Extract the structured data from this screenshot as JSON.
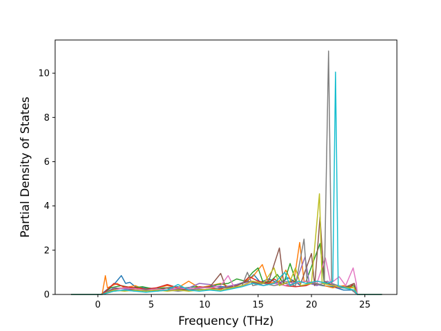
{
  "chart_data": {
    "type": "line",
    "title": "",
    "xlabel": "Frequency (THz)",
    "ylabel": "Partial Density of States",
    "xlim": [
      -4.0,
      28.0
    ],
    "ylim": [
      0,
      11.5
    ],
    "xticks": [
      0,
      5,
      10,
      15,
      20,
      25
    ],
    "yticks": [
      0,
      2,
      4,
      6,
      8,
      10
    ],
    "grid": false,
    "legend": "none",
    "colors": [
      "#1f77b4",
      "#ff7f0e",
      "#2ca02c",
      "#d62728",
      "#9467bd",
      "#8c564b",
      "#e377c2",
      "#7f7f7f",
      "#bcbd22",
      "#17becf"
    ],
    "x_range_data": [
      -2.5,
      26.6
    ],
    "series": [
      {
        "color": "#1f77b4",
        "points": [
          [
            -2.5,
            0
          ],
          [
            0.3,
            0
          ],
          [
            0.8,
            0.2
          ],
          [
            1.5,
            0.45
          ],
          [
            2.2,
            0.85
          ],
          [
            2.6,
            0.5
          ],
          [
            3.0,
            0.55
          ],
          [
            3.5,
            0.35
          ],
          [
            4.5,
            0.3
          ],
          [
            5.5,
            0.25
          ],
          [
            6.5,
            0.3
          ],
          [
            7.5,
            0.35
          ],
          [
            8.5,
            0.25
          ],
          [
            9.5,
            0.3
          ],
          [
            10.5,
            0.35
          ],
          [
            12,
            0.35
          ],
          [
            13,
            0.45
          ],
          [
            14,
            0.6
          ],
          [
            14.6,
            0.9
          ],
          [
            15.2,
            0.55
          ],
          [
            16,
            0.7
          ],
          [
            17,
            0.5
          ],
          [
            17.8,
            0.75
          ],
          [
            18.4,
            0.6
          ],
          [
            19,
            0.4
          ],
          [
            20,
            0.5
          ],
          [
            21,
            0.4
          ],
          [
            22,
            0.35
          ],
          [
            23,
            0.2
          ],
          [
            24,
            0.2
          ],
          [
            24.3,
            0
          ],
          [
            26.6,
            0
          ]
        ]
      },
      {
        "color": "#ff7f0e",
        "points": [
          [
            -2.5,
            0
          ],
          [
            0.4,
            0
          ],
          [
            0.7,
            0.85
          ],
          [
            0.9,
            0.3
          ],
          [
            1.8,
            0.5
          ],
          [
            2.5,
            0.3
          ],
          [
            3.5,
            0.4
          ],
          [
            4.5,
            0.2
          ],
          [
            5.5,
            0.3
          ],
          [
            6.5,
            0.4
          ],
          [
            7.5,
            0.3
          ],
          [
            8.5,
            0.6
          ],
          [
            9.5,
            0.3
          ],
          [
            10.5,
            0.4
          ],
          [
            11.5,
            0.5
          ],
          [
            12.5,
            0.3
          ],
          [
            13.5,
            0.5
          ],
          [
            14.5,
            0.8
          ],
          [
            15.4,
            1.35
          ],
          [
            16,
            0.5
          ],
          [
            17,
            0.6
          ],
          [
            17.6,
            1.1
          ],
          [
            18.3,
            0.4
          ],
          [
            18.9,
            2.35
          ],
          [
            19.3,
            0.6
          ],
          [
            20.3,
            0.5
          ],
          [
            21.2,
            0.4
          ],
          [
            22,
            0.3
          ],
          [
            23,
            0.4
          ],
          [
            24,
            0.3
          ],
          [
            24.3,
            0
          ],
          [
            26.6,
            0
          ]
        ]
      },
      {
        "color": "#2ca02c",
        "points": [
          [
            -2.5,
            0
          ],
          [
            0.4,
            0
          ],
          [
            1.2,
            0.3
          ],
          [
            2.2,
            0.4
          ],
          [
            3.2,
            0.3
          ],
          [
            4.2,
            0.35
          ],
          [
            5.2,
            0.25
          ],
          [
            6.2,
            0.3
          ],
          [
            7.2,
            0.25
          ],
          [
            8.2,
            0.3
          ],
          [
            9.2,
            0.35
          ],
          [
            10.2,
            0.3
          ],
          [
            11.2,
            0.45
          ],
          [
            12.2,
            0.5
          ],
          [
            13.0,
            0.7
          ],
          [
            13.8,
            0.6
          ],
          [
            14.5,
            1.0
          ],
          [
            15.0,
            1.2
          ],
          [
            15.5,
            0.5
          ],
          [
            16.2,
            0.6
          ],
          [
            16.8,
            0.9
          ],
          [
            17.4,
            0.5
          ],
          [
            18.0,
            1.4
          ],
          [
            18.6,
            0.5
          ],
          [
            19.5,
            0.6
          ],
          [
            20.8,
            2.3
          ],
          [
            21.2,
            0.5
          ],
          [
            22,
            0.4
          ],
          [
            23,
            0.3
          ],
          [
            24,
            0.4
          ],
          [
            24.3,
            0
          ],
          [
            26.6,
            0
          ]
        ]
      },
      {
        "color": "#d62728",
        "points": [
          [
            -2.5,
            0
          ],
          [
            0.4,
            0
          ],
          [
            1.5,
            0.5
          ],
          [
            2.5,
            0.35
          ],
          [
            3.5,
            0.3
          ],
          [
            4.5,
            0.25
          ],
          [
            5.5,
            0.3
          ],
          [
            6.5,
            0.45
          ],
          [
            7.5,
            0.3
          ],
          [
            8.5,
            0.2
          ],
          [
            9.5,
            0.35
          ],
          [
            10.5,
            0.3
          ],
          [
            11.5,
            0.25
          ],
          [
            12.5,
            0.4
          ],
          [
            13.5,
            0.5
          ],
          [
            14.2,
            0.8
          ],
          [
            15.0,
            0.6
          ],
          [
            16.0,
            0.5
          ],
          [
            16.5,
            0.7
          ],
          [
            17.5,
            0.4
          ],
          [
            18.5,
            0.35
          ],
          [
            19.5,
            0.4
          ],
          [
            20.5,
            0.6
          ],
          [
            21.5,
            0.5
          ],
          [
            22.5,
            0.3
          ],
          [
            23.5,
            0.3
          ],
          [
            24,
            0.5
          ],
          [
            24.3,
            0
          ],
          [
            26.6,
            0
          ]
        ]
      },
      {
        "color": "#9467bd",
        "points": [
          [
            -2.5,
            0
          ],
          [
            0.4,
            0
          ],
          [
            1.5,
            0.3
          ],
          [
            2.5,
            0.25
          ],
          [
            3.5,
            0.2
          ],
          [
            4.5,
            0.2
          ],
          [
            5.5,
            0.25
          ],
          [
            6.5,
            0.2
          ],
          [
            7.5,
            0.25
          ],
          [
            8.5,
            0.3
          ],
          [
            9.5,
            0.5
          ],
          [
            10.5,
            0.45
          ],
          [
            11.5,
            0.3
          ],
          [
            12.5,
            0.4
          ],
          [
            13.5,
            0.5
          ],
          [
            14.5,
            0.6
          ],
          [
            15.5,
            0.4
          ],
          [
            16.5,
            0.5
          ],
          [
            17.5,
            0.6
          ],
          [
            18.5,
            0.5
          ],
          [
            19.4,
            1.7
          ],
          [
            19.8,
            0.5
          ],
          [
            20.5,
            0.4
          ],
          [
            21.5,
            0.6
          ],
          [
            22.5,
            0.3
          ],
          [
            23.5,
            0.3
          ],
          [
            24.3,
            0
          ],
          [
            26.6,
            0
          ]
        ]
      },
      {
        "color": "#8c564b",
        "points": [
          [
            -2.5,
            0
          ],
          [
            0.4,
            0
          ],
          [
            1.5,
            0.25
          ],
          [
            2.5,
            0.3
          ],
          [
            3.5,
            0.2
          ],
          [
            4.5,
            0.25
          ],
          [
            5.5,
            0.2
          ],
          [
            6.5,
            0.3
          ],
          [
            7.5,
            0.25
          ],
          [
            8.5,
            0.2
          ],
          [
            9.5,
            0.3
          ],
          [
            10.5,
            0.35
          ],
          [
            11.5,
            0.95
          ],
          [
            12.0,
            0.3
          ],
          [
            13.0,
            0.4
          ],
          [
            14.0,
            0.6
          ],
          [
            15.0,
            0.5
          ],
          [
            16.0,
            0.6
          ],
          [
            17.0,
            2.1
          ],
          [
            17.4,
            0.5
          ],
          [
            18.2,
            0.6
          ],
          [
            19.0,
            0.5
          ],
          [
            20.0,
            1.85
          ],
          [
            20.3,
            0.4
          ],
          [
            20.8,
            3.5
          ],
          [
            21.2,
            0.6
          ],
          [
            22,
            0.4
          ],
          [
            23,
            0.3
          ],
          [
            24,
            0.5
          ],
          [
            24.3,
            0
          ],
          [
            26.6,
            0
          ]
        ]
      },
      {
        "color": "#e377c2",
        "points": [
          [
            -2.5,
            0
          ],
          [
            0.4,
            0
          ],
          [
            1.5,
            0.2
          ],
          [
            2.5,
            0.3
          ],
          [
            3.5,
            0.25
          ],
          [
            4.5,
            0.2
          ],
          [
            5.5,
            0.25
          ],
          [
            6.5,
            0.2
          ],
          [
            7.5,
            0.3
          ],
          [
            8.5,
            0.25
          ],
          [
            9.5,
            0.3
          ],
          [
            10.5,
            0.3
          ],
          [
            11.5,
            0.4
          ],
          [
            12.2,
            0.85
          ],
          [
            12.8,
            0.3
          ],
          [
            13.5,
            0.4
          ],
          [
            14.5,
            0.5
          ],
          [
            15.5,
            0.4
          ],
          [
            16.5,
            0.5
          ],
          [
            17.5,
            0.4
          ],
          [
            18.5,
            0.5
          ],
          [
            19.5,
            0.6
          ],
          [
            20.5,
            0.5
          ],
          [
            21.3,
            1.65
          ],
          [
            21.8,
            0.5
          ],
          [
            22.6,
            0.8
          ],
          [
            23.2,
            0.4
          ],
          [
            23.9,
            1.2
          ],
          [
            24.2,
            0.5
          ],
          [
            24.3,
            0
          ],
          [
            26.6,
            0
          ]
        ]
      },
      {
        "color": "#7f7f7f",
        "points": [
          [
            -2.5,
            0
          ],
          [
            0.4,
            0
          ],
          [
            1.5,
            0.15
          ],
          [
            2.5,
            0.2
          ],
          [
            3.5,
            0.15
          ],
          [
            4.5,
            0.2
          ],
          [
            5.5,
            0.15
          ],
          [
            6.5,
            0.2
          ],
          [
            7.5,
            0.15
          ],
          [
            8.5,
            0.2
          ],
          [
            9.5,
            0.25
          ],
          [
            10.5,
            0.2
          ],
          [
            11.5,
            0.3
          ],
          [
            12.5,
            0.3
          ],
          [
            13.5,
            0.4
          ],
          [
            14.0,
            1.0
          ],
          [
            14.5,
            0.4
          ],
          [
            15.5,
            0.5
          ],
          [
            16.5,
            0.4
          ],
          [
            17.5,
            0.5
          ],
          [
            18.5,
            0.4
          ],
          [
            19.3,
            2.5
          ],
          [
            19.6,
            0.5
          ],
          [
            20.5,
            0.5
          ],
          [
            21.2,
            0.4
          ],
          [
            21.6,
            11.0
          ],
          [
            21.9,
            0.5
          ],
          [
            22.5,
            0.4
          ],
          [
            23.5,
            0.3
          ],
          [
            24.3,
            0
          ],
          [
            26.6,
            0
          ]
        ]
      },
      {
        "color": "#bcbd22",
        "points": [
          [
            -2.5,
            0
          ],
          [
            0.4,
            0
          ],
          [
            1.5,
            0.2
          ],
          [
            2.5,
            0.15
          ],
          [
            3.5,
            0.2
          ],
          [
            4.5,
            0.15
          ],
          [
            5.5,
            0.2
          ],
          [
            6.5,
            0.15
          ],
          [
            7.5,
            0.2
          ],
          [
            8.5,
            0.15
          ],
          [
            9.5,
            0.2
          ],
          [
            10.5,
            0.25
          ],
          [
            11.5,
            0.2
          ],
          [
            12.5,
            0.3
          ],
          [
            13.5,
            0.4
          ],
          [
            14.5,
            0.6
          ],
          [
            15.5,
            0.5
          ],
          [
            16.5,
            1.2
          ],
          [
            17.0,
            0.4
          ],
          [
            18.0,
            0.6
          ],
          [
            18.5,
            1.2
          ],
          [
            19.0,
            0.4
          ],
          [
            20.0,
            0.5
          ],
          [
            20.75,
            4.55
          ],
          [
            21.0,
            0.5
          ],
          [
            22,
            0.4
          ],
          [
            23,
            0.3
          ],
          [
            24,
            0.3
          ],
          [
            24.3,
            0
          ],
          [
            26.6,
            0
          ]
        ]
      },
      {
        "color": "#17becf",
        "points": [
          [
            -2.5,
            0
          ],
          [
            0.4,
            0
          ],
          [
            1.5,
            0.15
          ],
          [
            2.5,
            0.2
          ],
          [
            3.5,
            0.15
          ],
          [
            4.5,
            0.1
          ],
          [
            5.5,
            0.15
          ],
          [
            6.5,
            0.2
          ],
          [
            7.5,
            0.45
          ],
          [
            8.5,
            0.2
          ],
          [
            9.5,
            0.15
          ],
          [
            10.5,
            0.2
          ],
          [
            11.5,
            0.15
          ],
          [
            12.5,
            0.25
          ],
          [
            13.5,
            0.35
          ],
          [
            14.5,
            0.5
          ],
          [
            15.5,
            0.4
          ],
          [
            16.5,
            0.5
          ],
          [
            17.5,
            1.0
          ],
          [
            18.0,
            0.4
          ],
          [
            18.8,
            0.6
          ],
          [
            19.5,
            0.5
          ],
          [
            20.5,
            0.6
          ],
          [
            21.5,
            0.5
          ],
          [
            22.0,
            0.6
          ],
          [
            22.25,
            10.05
          ],
          [
            22.5,
            0.4
          ],
          [
            23.0,
            0.3
          ],
          [
            24,
            0.2
          ],
          [
            24.3,
            0
          ],
          [
            26.6,
            0
          ]
        ]
      }
    ]
  }
}
